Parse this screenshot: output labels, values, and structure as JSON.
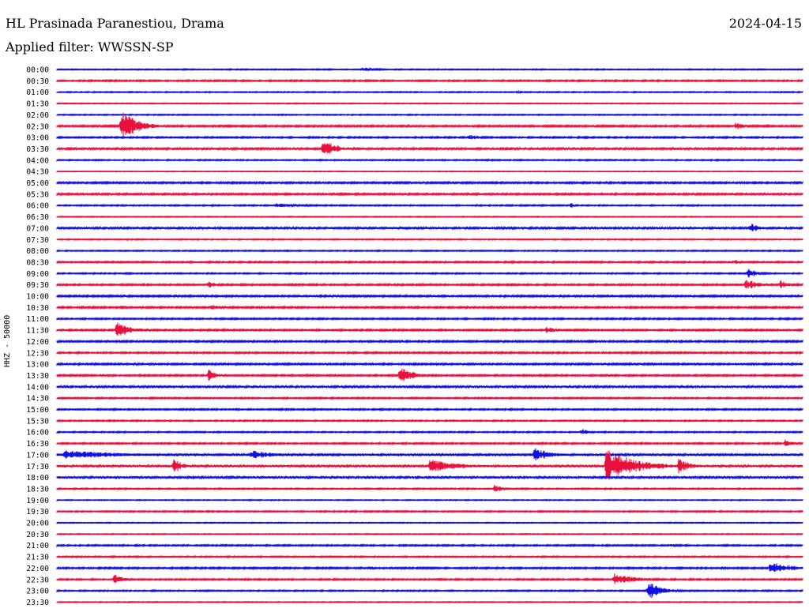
{
  "header": {
    "station": "HL Prasinada Paranestiou, Drama",
    "date": "2024-04-15",
    "filter": "Applied filter: WWSSN-SP"
  },
  "channel_label": "HHZ - 50000",
  "colors": {
    "even": "#1010e0",
    "odd": "#e8103c"
  },
  "chart_data": {
    "type": "line",
    "title": "HL Prasinada Paranestiou, Drama",
    "ylabel": "HHZ - 50000",
    "time_labels": [
      "00:00",
      "00:30",
      "01:00",
      "01:30",
      "02:00",
      "02:30",
      "03:00",
      "03:30",
      "04:00",
      "04:30",
      "05:00",
      "05:30",
      "06:00",
      "06:30",
      "07:00",
      "07:30",
      "08:00",
      "08:30",
      "09:00",
      "09:30",
      "10:00",
      "10:30",
      "11:00",
      "11:30",
      "12:00",
      "12:30",
      "13:00",
      "13:30",
      "14:00",
      "14:30",
      "15:00",
      "15:30",
      "16:00",
      "16:30",
      "17:00",
      "17:30",
      "18:00",
      "18:30",
      "19:00",
      "19:30",
      "20:00",
      "20:30",
      "21:00",
      "21:30",
      "22:00",
      "22:30",
      "23:00",
      "23:30"
    ],
    "trace_noise": [
      0.6,
      0.8,
      0.6,
      0.5,
      0.6,
      1.0,
      0.8,
      1.1,
      0.7,
      0.4,
      1.0,
      1.0,
      0.7,
      0.5,
      1.2,
      0.6,
      0.6,
      0.8,
      0.7,
      0.9,
      1.0,
      1.0,
      0.8,
      0.9,
      1.0,
      0.9,
      1.0,
      0.9,
      1.2,
      0.8,
      0.8,
      0.7,
      0.7,
      0.8,
      1.4,
      1.4,
      1.3,
      0.7,
      0.5,
      0.7,
      0.5,
      0.5,
      0.8,
      0.7,
      0.9,
      0.8,
      0.7,
      0.5
    ],
    "events": [
      {
        "trace": 0,
        "minute": 12.3,
        "amp": 3,
        "dur": 1.0
      },
      {
        "trace": 2,
        "minute": 18.5,
        "amp": 2,
        "dur": 0.3
      },
      {
        "trace": 5,
        "minute": 2.6,
        "amp": 22,
        "dur": 1.0
      },
      {
        "trace": 5,
        "minute": 27.3,
        "amp": 5,
        "dur": 0.7
      },
      {
        "trace": 6,
        "minute": 16.6,
        "amp": 4,
        "dur": 0.8
      },
      {
        "trace": 7,
        "minute": 10.7,
        "amp": 13,
        "dur": 0.9
      },
      {
        "trace": 12,
        "minute": 8.8,
        "amp": 3,
        "dur": 2.0
      },
      {
        "trace": 12,
        "minute": 20.7,
        "amp": 8,
        "dur": 0.1
      },
      {
        "trace": 14,
        "minute": 13.9,
        "amp": 4,
        "dur": 0.4
      },
      {
        "trace": 14,
        "minute": 27.9,
        "amp": 7,
        "dur": 0.6
      },
      {
        "trace": 17,
        "minute": 27.3,
        "amp": 3,
        "dur": 0.4
      },
      {
        "trace": 18,
        "minute": 27.8,
        "amp": 7,
        "dur": 0.6
      },
      {
        "trace": 19,
        "minute": 6.1,
        "amp": 5,
        "dur": 0.6
      },
      {
        "trace": 19,
        "minute": 27.7,
        "amp": 7,
        "dur": 1.0
      },
      {
        "trace": 19,
        "minute": 29.1,
        "amp": 6,
        "dur": 0.6
      },
      {
        "trace": 21,
        "minute": 6.2,
        "amp": 4,
        "dur": 1.0
      },
      {
        "trace": 23,
        "minute": 2.4,
        "amp": 11,
        "dur": 1.0
      },
      {
        "trace": 23,
        "minute": 19.7,
        "amp": 5,
        "dur": 0.5
      },
      {
        "trace": 27,
        "minute": 6.1,
        "amp": 9,
        "dur": 0.5
      },
      {
        "trace": 27,
        "minute": 13.8,
        "amp": 15,
        "dur": 0.8
      },
      {
        "trace": 32,
        "minute": 21.1,
        "amp": 5,
        "dur": 0.5
      },
      {
        "trace": 33,
        "minute": 29.3,
        "amp": 5,
        "dur": 0.7
      },
      {
        "trace": 34,
        "minute": 0.3,
        "amp": 6,
        "dur": 4.0
      },
      {
        "trace": 34,
        "minute": 7.8,
        "amp": 6,
        "dur": 1.6
      },
      {
        "trace": 34,
        "minute": 19.2,
        "amp": 12,
        "dur": 0.9
      },
      {
        "trace": 35,
        "minute": 4.7,
        "amp": 12,
        "dur": 0.5
      },
      {
        "trace": 35,
        "minute": 15.0,
        "amp": 9,
        "dur": 2.0
      },
      {
        "trace": 35,
        "minute": 22.1,
        "amp": 22,
        "dur": 2.0
      },
      {
        "trace": 35,
        "minute": 25.0,
        "amp": 10,
        "dur": 0.8
      },
      {
        "trace": 37,
        "minute": 17.6,
        "amp": 7,
        "dur": 0.4
      },
      {
        "trace": 42,
        "minute": 24.7,
        "amp": 2,
        "dur": 1.0
      },
      {
        "trace": 44,
        "minute": 12.6,
        "amp": 3,
        "dur": 0.4
      },
      {
        "trace": 44,
        "minute": 28.7,
        "amp": 8,
        "dur": 1.5
      },
      {
        "trace": 45,
        "minute": 2.3,
        "amp": 7,
        "dur": 0.6
      },
      {
        "trace": 45,
        "minute": 22.4,
        "amp": 8,
        "dur": 1.5
      },
      {
        "trace": 46,
        "minute": 23.8,
        "amp": 13,
        "dur": 0.9
      }
    ]
  }
}
